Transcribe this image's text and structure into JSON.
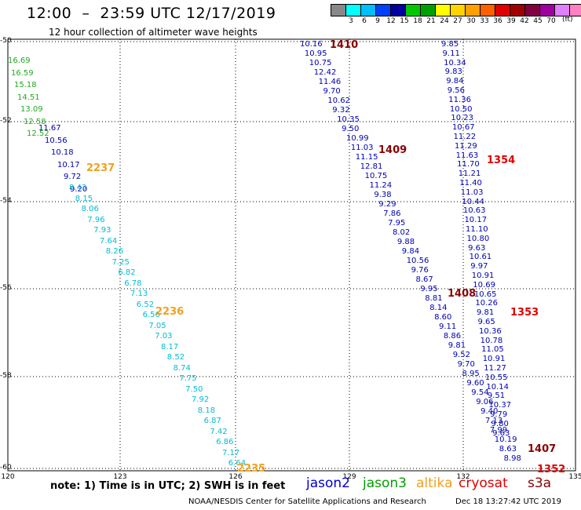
{
  "header": {
    "title": "12:00  –  23:59 UTC 12/17/2019",
    "subtitle": "12 hour collection of altimeter wave heights"
  },
  "legend": {
    "unit": "(ft)",
    "items": [
      {
        "label": "",
        "color": "#888888"
      },
      {
        "label": "3",
        "color": "#00ffff"
      },
      {
        "label": "6",
        "color": "#00bfff"
      },
      {
        "label": "9",
        "color": "#0040ff"
      },
      {
        "label": "12",
        "color": "#0000a0"
      },
      {
        "label": "15",
        "color": "#00c800"
      },
      {
        "label": "18",
        "color": "#00a000"
      },
      {
        "label": "21",
        "color": "#ffff00"
      },
      {
        "label": "24",
        "color": "#ffd400"
      },
      {
        "label": "27",
        "color": "#ffa000"
      },
      {
        "label": "30",
        "color": "#ff6000"
      },
      {
        "label": "33",
        "color": "#e00000"
      },
      {
        "label": "36",
        "color": "#a00000"
      },
      {
        "label": "39",
        "color": "#800040"
      },
      {
        "label": "42",
        "color": "#a000a0"
      },
      {
        "label": "45",
        "color": "#e080ff"
      },
      {
        "label": "70",
        "color": "#ff80c0"
      },
      {
        "label": "",
        "color": "#000000"
      }
    ]
  },
  "axes": {
    "lat_labels": [
      "-50",
      "-52",
      "-54",
      "-56",
      "-58",
      "-60"
    ],
    "lon_labels": [
      "120",
      "123",
      "126",
      "129",
      "132",
      "135"
    ]
  },
  "colors": {
    "c1": "#00bcd4",
    "c2": "#0000b4",
    "c3": "#22aa22",
    "c4": "#66dd44",
    "passRed": "#dd0000",
    "passDark": "#880000",
    "passOrange": "#f0a020"
  },
  "tracks": [
    {
      "cls": "c3",
      "values": [
        "16.69",
        "16.59",
        "15.18",
        "14.51",
        "13.09",
        "12.58",
        "12.52"
      ]
    },
    {
      "cls": "c2",
      "values": [
        "11.67",
        "10.56",
        "10.18",
        "10.17",
        "9.72",
        "9.20"
      ]
    },
    {
      "cls": "c1",
      "values": [
        "8.43",
        "8.15",
        "8.06",
        "7.96",
        "7.93",
        "7.64",
        "8.26",
        "7.25",
        "6.82",
        "6.78",
        "7.13",
        "6.52",
        "6.56",
        "7.05",
        "7.03",
        "8.17",
        "8.52",
        "8.74",
        "7.75",
        "7.50",
        "7.92",
        "8.18",
        "6.87",
        "7.42",
        "6.86",
        "7.17",
        "6.64"
      ]
    },
    {
      "cls": "c2",
      "values": [
        "10.16",
        "10.95",
        "10.75",
        "12.42",
        "11.46",
        "9.70",
        "10.62",
        "9.32",
        "10.35",
        "9.50",
        "10.99",
        "11.03",
        "11.15",
        "12.81",
        "10.75",
        "11.24",
        "9.38",
        "9.29",
        "7.86",
        "7.95",
        "8.02",
        "9.88",
        "9.84",
        "10.56",
        "9.76",
        "8.67",
        "9.95",
        "8.81",
        "8.14",
        "8.60",
        "9.11",
        "8.86",
        "9.81",
        "9.52",
        "9.70",
        "8.95",
        "9.60",
        "9.54",
        "9.06",
        "9.40",
        "7.13",
        "7.99",
        "10.19",
        "8.63",
        "8.98"
      ]
    },
    {
      "cls": "c2",
      "values": [
        "9.85",
        "9.11",
        "10.34",
        "9.83",
        "9.84",
        "9.56",
        "11.36",
        "10.50",
        "10.23",
        "10.67",
        "11.22",
        "11.29",
        "11.63",
        "11.70",
        "11.21",
        "11.40",
        "11.03",
        "10.44",
        "10.63",
        "10.17",
        "11.10",
        "10.80",
        "9.63",
        "10.61",
        "9.97",
        "10.91",
        "10.69",
        "10.65",
        "10.26",
        "9.81",
        "9.65",
        "10.36",
        "10.78",
        "11.05",
        "10.91",
        "11.27",
        "10.55",
        "10.14",
        "9.51",
        "10.37",
        "9.79",
        "9.80",
        "9.63"
      ]
    }
  ],
  "passes": [
    {
      "label": "1410",
      "cls": "passDark"
    },
    {
      "label": "1409",
      "cls": "passDark"
    },
    {
      "label": "2237",
      "cls": "passOrange"
    },
    {
      "label": "1354",
      "cls": "passRed"
    },
    {
      "label": "1408",
      "cls": "passDark"
    },
    {
      "label": "2236",
      "cls": "passOrange"
    },
    {
      "label": "1353",
      "cls": "passRed"
    },
    {
      "label": "1407",
      "cls": "passDark"
    },
    {
      "label": "2235",
      "cls": "passOrange"
    },
    {
      "label": "1352",
      "cls": "passRed"
    }
  ],
  "footer": {
    "note": "note:  1) Time is in UTC;  2) SWH is in feet",
    "satellites": [
      {
        "name": "jason2",
        "color": "#0000cc"
      },
      {
        "name": "jason3",
        "color": "#00a000"
      },
      {
        "name": "altika",
        "color": "#f0a020"
      },
      {
        "name": "cryosat",
        "color": "#dd0000"
      },
      {
        "name": "s3a",
        "color": "#880000"
      }
    ],
    "credit": "NOAA/NESDIS Center for Satellite Applications and Research",
    "stamp": "Dec 18 13:27:42 UTC 2019"
  }
}
